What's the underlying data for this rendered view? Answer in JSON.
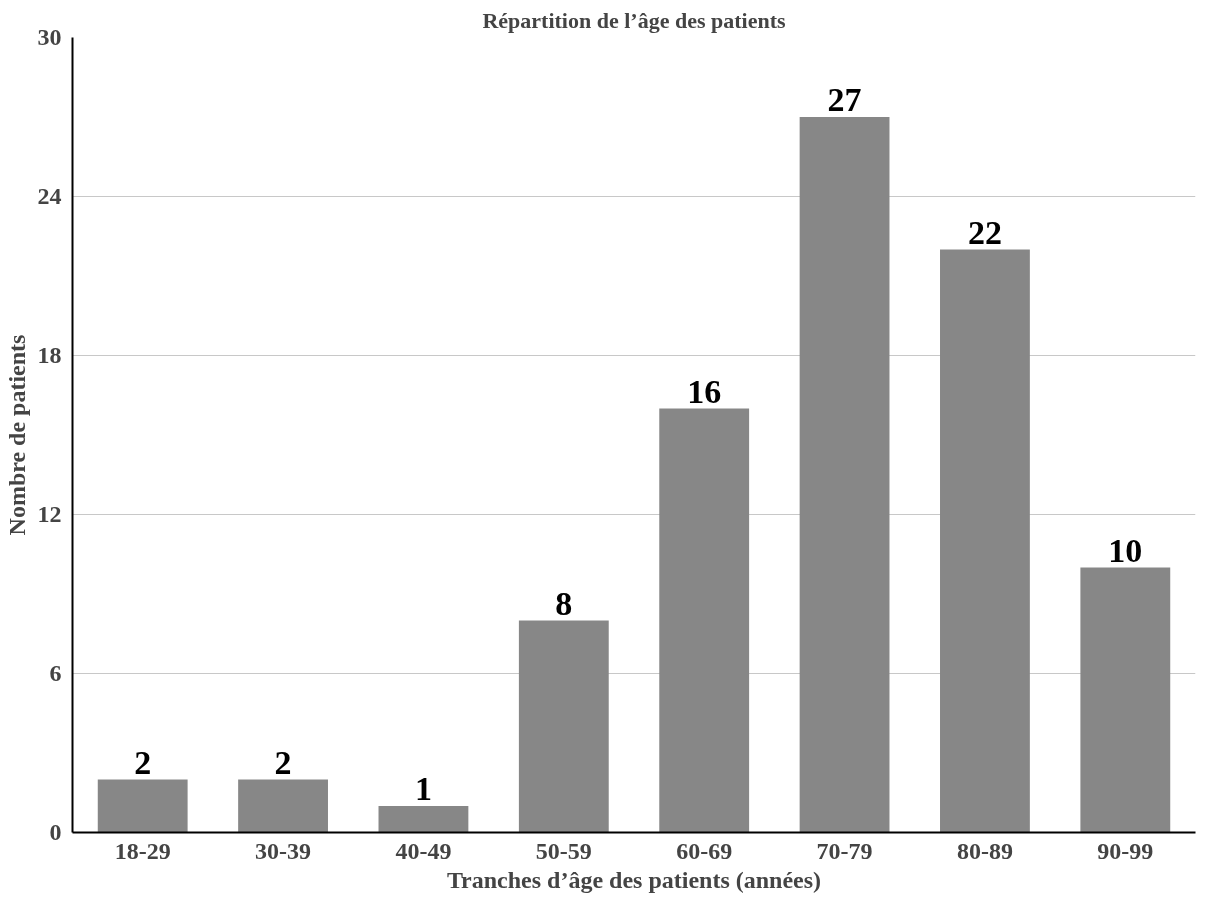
{
  "chart_data": {
    "type": "bar",
    "title": "Répartition de l’âge des patients",
    "xlabel": "Tranches d’âge des patients (années)",
    "ylabel": "Nombre de patients",
    "categories": [
      "18-29",
      "30-39",
      "40-49",
      "50-59",
      "60-69",
      "70-79",
      "80-89",
      "90-99"
    ],
    "values": [
      2,
      2,
      1,
      8,
      16,
      27,
      22,
      10
    ],
    "color": "#878787",
    "ylim": [
      0,
      30
    ],
    "yticks": [
      0,
      6,
      12,
      18,
      24,
      30
    ],
    "grid": "y",
    "data_labels": true
  }
}
